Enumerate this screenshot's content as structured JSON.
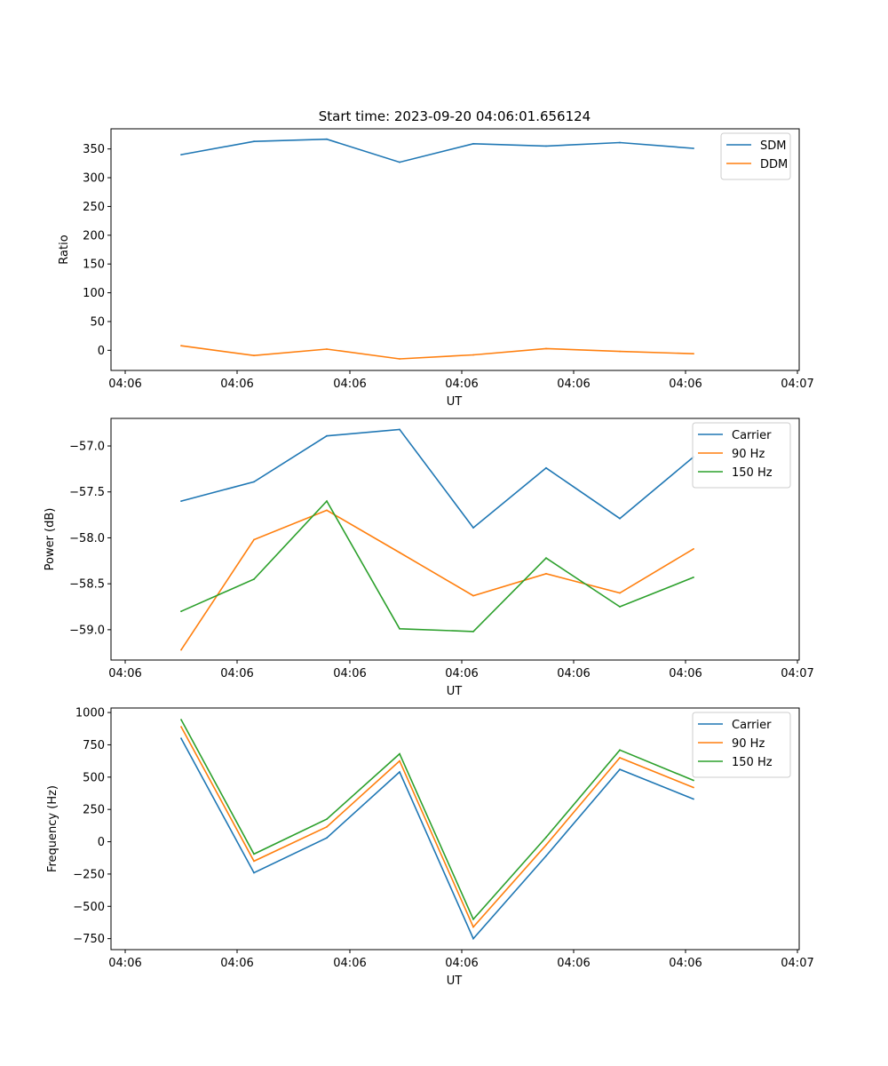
{
  "figure": {
    "title": "Start time: 2023-09-20 04:06:01.656124"
  },
  "chart_data": [
    {
      "type": "line",
      "title": "Start time: 2023-09-20 04:06:01.656124",
      "xlabel": "UT",
      "ylabel": "Ratio",
      "xticks": [
        "04:06",
        "04:06",
        "04:06",
        "04:06",
        "04:06",
        "04:06",
        "04:07"
      ],
      "yticks": [
        0,
        50,
        100,
        150,
        200,
        250,
        300,
        350
      ],
      "ylim": [
        -35,
        385
      ],
      "legend": "top-right",
      "series": [
        {
          "name": "SDM",
          "color": "#1f77b4",
          "values": [
            340,
            363,
            367,
            327,
            359,
            355,
            361,
            351
          ]
        },
        {
          "name": "DDM",
          "color": "#ff7f0e",
          "values": [
            8,
            -9,
            2,
            -15,
            -8,
            3,
            -2,
            -6
          ]
        }
      ]
    },
    {
      "type": "line",
      "title": "",
      "xlabel": "UT",
      "ylabel": "Power (dB)",
      "xticks": [
        "04:06",
        "04:06",
        "04:06",
        "04:06",
        "04:06",
        "04:06",
        "04:07"
      ],
      "yticks": [
        -57.0,
        -57.5,
        -58.0,
        -58.5,
        -59.0
      ],
      "yticklabels": [
        "−57.0",
        "−57.5",
        "−58.0",
        "−58.5",
        "−59.0"
      ],
      "ylim": [
        -59.33,
        -56.7
      ],
      "legend": "top-right",
      "series": [
        {
          "name": "Carrier",
          "color": "#1f77b4",
          "values": [
            -57.6,
            -57.39,
            -56.89,
            -56.82,
            -57.89,
            -57.24,
            -57.79,
            -57.12
          ]
        },
        {
          "name": "90 Hz",
          "color": "#ff7f0e",
          "values": [
            -59.22,
            -58.02,
            -57.7,
            -58.16,
            -58.63,
            -58.39,
            -58.6,
            -58.12
          ]
        },
        {
          "name": "150 Hz",
          "color": "#2ca02c",
          "values": [
            -58.8,
            -58.45,
            -57.6,
            -58.99,
            -59.02,
            -58.22,
            -58.75,
            -58.43
          ]
        }
      ]
    },
    {
      "type": "line",
      "title": "",
      "xlabel": "UT",
      "ylabel": "Frequency (Hz)",
      "xticks": [
        "04:06",
        "04:06",
        "04:06",
        "04:06",
        "04:06",
        "04:06",
        "04:07"
      ],
      "yticks": [
        -750,
        -500,
        -250,
        0,
        250,
        500,
        750,
        1000
      ],
      "yticklabels": [
        "−750",
        "−500",
        "−250",
        "0",
        "250",
        "500",
        "750",
        "1000"
      ],
      "ylim": [
        -835,
        1035
      ],
      "legend": "top-right",
      "series": [
        {
          "name": "Carrier",
          "color": "#1f77b4",
          "values": [
            800,
            -240,
            30,
            540,
            -750,
            -110,
            560,
            330
          ]
        },
        {
          "name": "90 Hz",
          "color": "#ff7f0e",
          "values": [
            890,
            -150,
            115,
            625,
            -660,
            -25,
            650,
            420
          ]
        },
        {
          "name": "150 Hz",
          "color": "#2ca02c",
          "values": [
            945,
            -95,
            175,
            680,
            -600,
            35,
            710,
            475
          ]
        }
      ]
    }
  ]
}
